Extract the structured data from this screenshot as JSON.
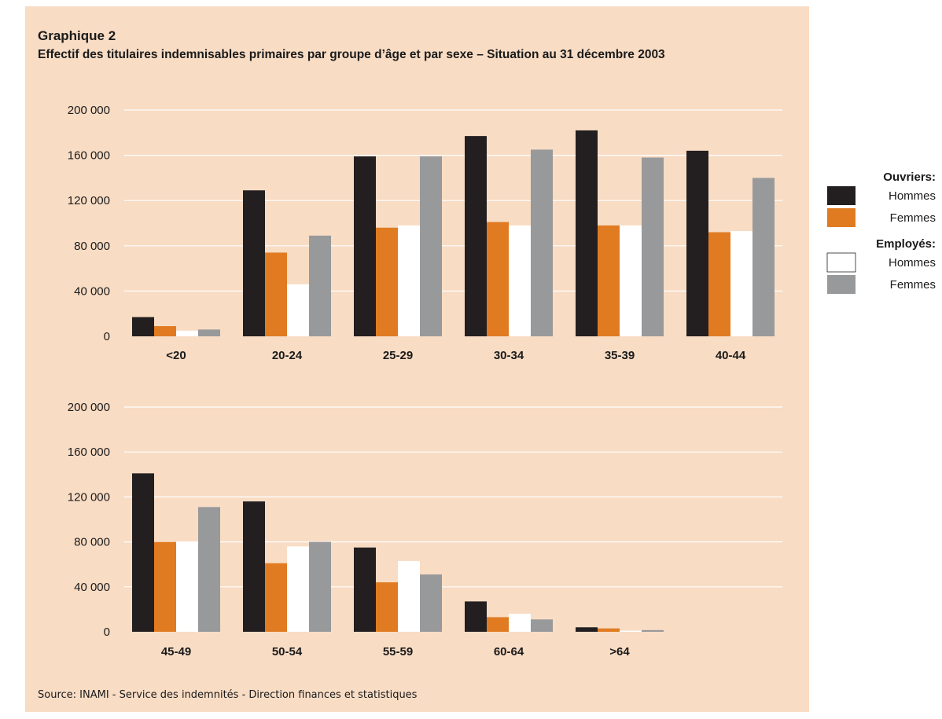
{
  "title": "Graphique 2",
  "subtitle": "Effectif des titulaires indemnisables primaires par groupe d’âge et par sexe – Situation au 31 décembre 2003",
  "source": "Source: INAMI - Service des indemnités - Direction finances et statistiques",
  "colors": {
    "background": "#f8dcc4",
    "ouvriers_hommes": "#231f20",
    "ouvriers_femmes": "#e07b22",
    "employes_hommes": "#ffffff",
    "employes_femmes": "#98999b",
    "gridline": "#ffffff"
  },
  "legend": {
    "groups": [
      {
        "label": "Ouvriers:",
        "items": [
          {
            "label": "Hommes",
            "color": "#231f20"
          },
          {
            "label": "Femmes",
            "color": "#e07b22"
          }
        ]
      },
      {
        "label": "Employés:",
        "items": [
          {
            "label": "Hommes",
            "color": "#ffffff"
          },
          {
            "label": "Femmes",
            "color": "#98999b"
          }
        ]
      }
    ]
  },
  "chart_data": [
    {
      "type": "bar",
      "categories": [
        "<20",
        "20-24",
        "25-29",
        "30-34",
        "35-39",
        "40-44"
      ],
      "series": [
        {
          "name": "Ouvriers: Hommes",
          "values": [
            17000,
            129000,
            159000,
            177000,
            182000,
            164000
          ]
        },
        {
          "name": "Ouvriers: Femmes",
          "values": [
            9000,
            74000,
            96000,
            101000,
            98000,
            92000
          ]
        },
        {
          "name": "Employés: Hommes",
          "values": [
            5000,
            46000,
            98000,
            98000,
            98000,
            93000
          ]
        },
        {
          "name": "Employés: Femmes",
          "values": [
            6000,
            89000,
            159000,
            165000,
            158000,
            140000
          ]
        }
      ],
      "ylim": [
        0,
        200000
      ],
      "yticks": [
        0,
        40000,
        80000,
        120000,
        160000,
        200000
      ],
      "ytick_labels": [
        "0",
        "40 000",
        "80 000",
        "120 000",
        "160 000",
        "200 000"
      ],
      "grid": true
    },
    {
      "type": "bar",
      "categories": [
        "45-49",
        "50-54",
        "55-59",
        "60-64",
        ">64"
      ],
      "series": [
        {
          "name": "Ouvriers: Hommes",
          "values": [
            141000,
            116000,
            75000,
            27000,
            4000
          ]
        },
        {
          "name": "Ouvriers: Femmes",
          "values": [
            80000,
            61000,
            44000,
            13000,
            3000
          ]
        },
        {
          "name": "Employés: Hommes",
          "values": [
            80000,
            76000,
            63000,
            16000,
            1000
          ]
        },
        {
          "name": "Employés: Femmes",
          "values": [
            111000,
            80000,
            51000,
            11000,
            1500
          ]
        }
      ],
      "ylim": [
        0,
        200000
      ],
      "yticks": [
        0,
        40000,
        80000,
        120000,
        160000,
        200000
      ],
      "ytick_labels": [
        "0",
        "40 000",
        "80 000",
        "120 000",
        "160 000",
        "200 000"
      ],
      "grid": true
    }
  ]
}
